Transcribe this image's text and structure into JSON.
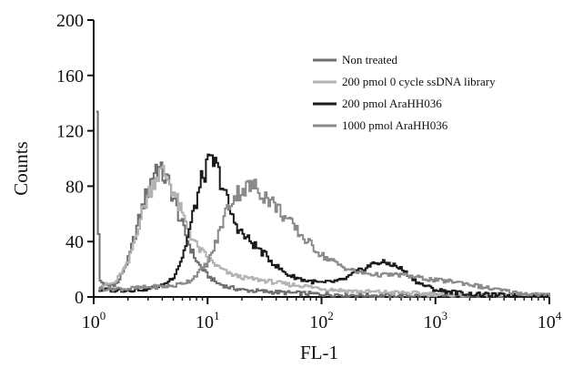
{
  "chart_data": {
    "type": "line",
    "title": "",
    "xlabel": "FL-1",
    "ylabel": "Counts",
    "x_scale": "log",
    "xlim": [
      1,
      10000
    ],
    "ylim": [
      0,
      200
    ],
    "x_ticks": [
      {
        "value": 1,
        "base": "10",
        "exp": "0"
      },
      {
        "value": 10,
        "base": "10",
        "exp": "1"
      },
      {
        "value": 100,
        "base": "10",
        "exp": "2"
      },
      {
        "value": 1000,
        "base": "10",
        "exp": "3"
      },
      {
        "value": 10000,
        "base": "10",
        "exp": "4"
      }
    ],
    "y_ticks": [
      0,
      40,
      80,
      120,
      160,
      200
    ],
    "grid": false,
    "legend_position": "top-right",
    "series": [
      {
        "name": "Non treated",
        "color": "#6e6e6e",
        "points": [
          [
            1.05,
            142
          ],
          [
            1.1,
            12
          ],
          [
            1.3,
            8
          ],
          [
            1.6,
            10
          ],
          [
            2.0,
            28
          ],
          [
            2.5,
            58
          ],
          [
            3.0,
            80
          ],
          [
            3.5,
            95
          ],
          [
            4.0,
            88
          ],
          [
            4.5,
            82
          ],
          [
            5.0,
            70
          ],
          [
            6.0,
            50
          ],
          [
            7.0,
            35
          ],
          [
            8.0,
            25
          ],
          [
            10.0,
            15
          ],
          [
            12.0,
            10
          ],
          [
            15.0,
            7
          ],
          [
            20.0,
            5
          ],
          [
            30.0,
            4
          ],
          [
            50.0,
            3
          ],
          [
            100.0,
            2
          ],
          [
            300.0,
            1
          ],
          [
            1000.0,
            1
          ],
          [
            10000.0,
            0
          ]
        ]
      },
      {
        "name": "200 pmol 0 cycle ssDNA library",
        "color": "#b3b3b3",
        "points": [
          [
            1.1,
            8
          ],
          [
            1.5,
            10
          ],
          [
            2.0,
            25
          ],
          [
            2.5,
            55
          ],
          [
            3.0,
            75
          ],
          [
            3.5,
            88
          ],
          [
            4.0,
            90
          ],
          [
            4.5,
            85
          ],
          [
            5.0,
            75
          ],
          [
            6.0,
            58
          ],
          [
            7.0,
            45
          ],
          [
            8.0,
            36
          ],
          [
            10.0,
            28
          ],
          [
            12.0,
            22
          ],
          [
            15.0,
            17
          ],
          [
            20.0,
            14
          ],
          [
            30.0,
            12
          ],
          [
            50.0,
            9
          ],
          [
            70.0,
            8
          ],
          [
            100.0,
            6
          ],
          [
            200.0,
            4
          ],
          [
            500.0,
            3
          ],
          [
            1000.0,
            2
          ],
          [
            10000.0,
            1
          ]
        ]
      },
      {
        "name": "200 pmol AraHH036",
        "color": "#1a1a1a",
        "points": [
          [
            1.1,
            5
          ],
          [
            2.0,
            5
          ],
          [
            3.0,
            6
          ],
          [
            4.0,
            8
          ],
          [
            5.0,
            15
          ],
          [
            6.0,
            30
          ],
          [
            7.0,
            52
          ],
          [
            8.0,
            72
          ],
          [
            9.0,
            88
          ],
          [
            10.0,
            95
          ],
          [
            11.0,
            98
          ],
          [
            12.0,
            92
          ],
          [
            14.0,
            75
          ],
          [
            16.0,
            58
          ],
          [
            20.0,
            45
          ],
          [
            25.0,
            38
          ],
          [
            30.0,
            32
          ],
          [
            40.0,
            22
          ],
          [
            50.0,
            16
          ],
          [
            70.0,
            12
          ],
          [
            100.0,
            10
          ],
          [
            150.0,
            12
          ],
          [
            200.0,
            18
          ],
          [
            300.0,
            25
          ],
          [
            400.0,
            24
          ],
          [
            500.0,
            20
          ],
          [
            700.0,
            10
          ],
          [
            1000.0,
            5
          ],
          [
            2000.0,
            2
          ],
          [
            10000.0,
            0
          ]
        ]
      },
      {
        "name": "1000 pmol AraHH036",
        "color": "#8a8a8a",
        "points": [
          [
            1.1,
            6
          ],
          [
            2.0,
            6
          ],
          [
            3.0,
            7
          ],
          [
            5.0,
            8
          ],
          [
            7.0,
            12
          ],
          [
            10.0,
            25
          ],
          [
            12.0,
            42
          ],
          [
            14.0,
            60
          ],
          [
            16.0,
            70
          ],
          [
            18.0,
            75
          ],
          [
            20.0,
            78
          ],
          [
            25.0,
            80
          ],
          [
            30.0,
            75
          ],
          [
            40.0,
            65
          ],
          [
            50.0,
            55
          ],
          [
            70.0,
            42
          ],
          [
            100.0,
            30
          ],
          [
            150.0,
            22
          ],
          [
            200.0,
            18
          ],
          [
            300.0,
            16
          ],
          [
            500.0,
            16
          ],
          [
            700.0,
            14
          ],
          [
            1000.0,
            12
          ],
          [
            1500.0,
            11
          ],
          [
            2000.0,
            9
          ],
          [
            3000.0,
            6
          ],
          [
            5000.0,
            3
          ],
          [
            10000.0,
            1
          ]
        ]
      }
    ]
  }
}
